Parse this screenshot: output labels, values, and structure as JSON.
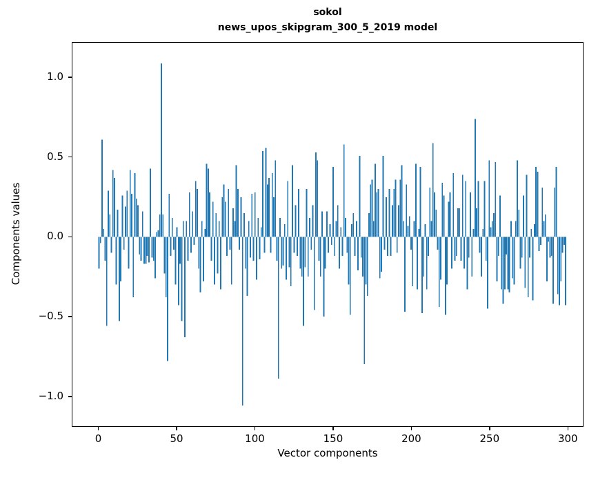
{
  "figure": {
    "title_line1": "sokol",
    "title_line2": "news_upos_skipgram_300_5_2019 model",
    "xlabel": "Vector components",
    "ylabel": "Components values"
  },
  "chart_data": {
    "type": "bar",
    "title": "sokol\nnews_upos_skipgram_300_5_2019 model",
    "xlabel": "Vector components",
    "ylabel": "Components values",
    "bar_color": "#1f77b4",
    "bar_width": 0.8,
    "n_components": 300,
    "x_range": [
      0,
      299
    ],
    "xlim": [
      -17,
      310
    ],
    "ylim": [
      -1.19,
      1.22
    ],
    "grid": false,
    "legend": "none",
    "x_ticks": [
      0,
      50,
      100,
      150,
      200,
      250,
      300
    ],
    "x_tick_labels": [
      "0",
      "50",
      "100",
      "150",
      "200",
      "250",
      "300"
    ],
    "y_ticks": [
      1.0,
      0.5,
      0.0,
      -0.5,
      -1.0
    ],
    "y_tick_labels": [
      "1.0",
      "0.5",
      "0.0",
      "−0.5",
      "−1.0"
    ],
    "values": [
      -0.2,
      -0.04,
      0.61,
      0.05,
      -0.15,
      -0.56,
      0.29,
      0.14,
      -0.1,
      0.42,
      0.37,
      -0.3,
      0.17,
      -0.53,
      -0.28,
      0.26,
      -0.08,
      0.19,
      0.29,
      -0.2,
      0.42,
      0.27,
      -0.38,
      0.4,
      0.24,
      0.2,
      -0.11,
      -0.15,
      0.16,
      -0.17,
      -0.17,
      -0.12,
      -0.16,
      0.43,
      -0.13,
      -0.15,
      -0.26,
      0.03,
      0.04,
      0.14,
      1.09,
      0.14,
      -0.23,
      -0.38,
      -0.78,
      0.27,
      -0.12,
      0.12,
      -0.08,
      -0.3,
      0.06,
      -0.43,
      -0.17,
      -0.53,
      0.1,
      -0.63,
      0.1,
      -0.15,
      0.28,
      -0.1,
      0.16,
      -0.05,
      0.35,
      0.3,
      -0.2,
      -0.35,
      0.1,
      -0.28,
      0.05,
      0.46,
      0.43,
      0.28,
      -0.15,
      0.22,
      -0.3,
      0.15,
      -0.23,
      0.1,
      -0.33,
      0.25,
      0.33,
      0.22,
      -0.12,
      0.3,
      -0.08,
      -0.3,
      0.18,
      0.1,
      0.45,
      0.3,
      -0.08,
      0.25,
      -1.06,
      0.15,
      -0.2,
      -0.37,
      0.1,
      -0.13,
      0.27,
      -0.15,
      0.28,
      -0.27,
      0.12,
      -0.14,
      0.06,
      0.54,
      -0.1,
      0.56,
      0.33,
      0.37,
      -0.1,
      0.4,
      0.25,
      0.48,
      -0.15,
      -0.89,
      0.12,
      -0.2,
      -0.18,
      0.08,
      -0.27,
      0.35,
      -0.19,
      -0.31,
      0.45,
      -0.1,
      0.2,
      -0.12,
      0.3,
      -0.2,
      -0.25,
      -0.56,
      -0.19,
      0.3,
      -0.25,
      0.12,
      -0.08,
      0.2,
      -0.46,
      0.53,
      0.48,
      -0.15,
      -0.25,
      0.16,
      -0.5,
      -0.2,
      0.16,
      -0.1,
      0.08,
      -0.05,
      0.44,
      -0.12,
      0.1,
      0.2,
      -0.2,
      0.06,
      -0.12,
      0.58,
      0.12,
      -0.1,
      -0.3,
      -0.49,
      0.08,
      0.15,
      -0.12,
      0.1,
      -0.21,
      0.51,
      -0.13,
      -0.25,
      -0.8,
      -0.3,
      -0.37,
      0.15,
      0.33,
      0.36,
      0.1,
      0.46,
      0.28,
      0.3,
      -0.26,
      -0.22,
      0.51,
      -0.08,
      0.25,
      -0.12,
      0.3,
      -0.12,
      0.2,
      0.3,
      0.36,
      -0.1,
      0.2,
      0.36,
      0.45,
      0.1,
      -0.47,
      0.33,
      0.07,
      0.13,
      -0.08,
      -0.31,
      0.1,
      0.46,
      -0.33,
      0.05,
      0.44,
      -0.48,
      -0.25,
      0.08,
      -0.33,
      -0.12,
      0.31,
      0.1,
      0.59,
      0.28,
      0.17,
      -0.08,
      -0.44,
      -0.27,
      0.34,
      0.26,
      -0.49,
      -0.3,
      0.22,
      0.28,
      -0.2,
      0.4,
      -0.15,
      -0.12,
      0.18,
      0.18,
      -0.15,
      0.39,
      -0.2,
      0.35,
      -0.33,
      -0.13,
      0.28,
      -0.25,
      0.05,
      0.74,
      0.18,
      0.35,
      -0.1,
      -0.25,
      0.05,
      0.35,
      -0.15,
      -0.45,
      0.48,
      0.06,
      0.1,
      0.15,
      0.47,
      -0.28,
      -0.12,
      0.26,
      -0.33,
      -0.42,
      -0.33,
      -0.11,
      -0.33,
      -0.35,
      0.1,
      -0.26,
      -0.3,
      0.1,
      0.48,
      0.17,
      -0.2,
      -0.13,
      0.26,
      -0.32,
      0.39,
      -0.38,
      -0.13,
      0.05,
      -0.4,
      0.08,
      0.44,
      0.41,
      -0.09,
      -0.05,
      0.31,
      0.1,
      0.14,
      -0.28,
      -0.03,
      -0.13,
      -0.12,
      -0.42,
      0.31,
      0.44,
      -0.36,
      -0.43,
      -0.28,
      -0.1,
      -0.05,
      -0.43
    ]
  }
}
